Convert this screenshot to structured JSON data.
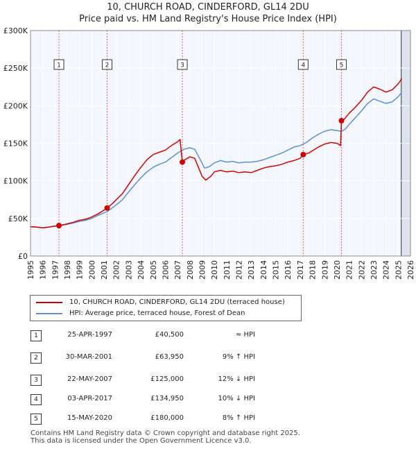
{
  "header": {
    "line1": "10, CHURCH ROAD, CINDERFORD, GL14 2DU",
    "line2": "Price paid vs. HM Land Registry's House Price Index (HPI)"
  },
  "chart_data": {
    "type": "line",
    "title": "10, CHURCH ROAD, CINDERFORD, GL14 2DU",
    "subtitle": "Price paid vs. HM Land Registry's House Price Index (HPI)",
    "xlabel": "",
    "ylabel": "",
    "xlim": [
      1995,
      2026
    ],
    "ylim": [
      0,
      300000
    ],
    "x_ticks": [
      1995,
      1996,
      1997,
      1998,
      1999,
      2000,
      2001,
      2002,
      2003,
      2004,
      2005,
      2006,
      2007,
      2008,
      2009,
      2010,
      2011,
      2012,
      2013,
      2014,
      2015,
      2016,
      2017,
      2018,
      2019,
      2020,
      2021,
      2022,
      2023,
      2024,
      2025,
      2026
    ],
    "y_ticks": [
      {
        "value": 0,
        "label": "£0"
      },
      {
        "value": 50000,
        "label": "£50K"
      },
      {
        "value": 100000,
        "label": "£100K"
      },
      {
        "value": 150000,
        "label": "£150K"
      },
      {
        "value": 200000,
        "label": "£200K"
      },
      {
        "value": 250000,
        "label": "£250K"
      },
      {
        "value": 300000,
        "label": "£300K"
      }
    ],
    "grid": true,
    "future_shade_from": 2025.25,
    "series": [
      {
        "name": "10, CHURCH ROAD, CINDERFORD, GL14 2DU (terraced house)",
        "color": "#cc0000",
        "points": [
          [
            1995.0,
            39000
          ],
          [
            1995.5,
            38500
          ],
          [
            1996.0,
            37500
          ],
          [
            1996.5,
            38500
          ],
          [
            1997.0,
            40000
          ],
          [
            1997.32,
            40500
          ],
          [
            1997.8,
            42000
          ],
          [
            1998.5,
            45000
          ],
          [
            1999.0,
            47500
          ],
          [
            1999.5,
            49000
          ],
          [
            2000.0,
            52000
          ],
          [
            2000.5,
            56000
          ],
          [
            2001.0,
            61000
          ],
          [
            2001.25,
            63950
          ],
          [
            2001.7,
            70000
          ],
          [
            2002.0,
            75000
          ],
          [
            2002.5,
            83000
          ],
          [
            2003.0,
            95000
          ],
          [
            2003.5,
            107000
          ],
          [
            2004.0,
            118000
          ],
          [
            2004.5,
            128000
          ],
          [
            2005.0,
            135000
          ],
          [
            2005.5,
            138000
          ],
          [
            2006.0,
            141000
          ],
          [
            2006.5,
            147000
          ],
          [
            2007.0,
            152000
          ],
          [
            2007.2,
            155000
          ],
          [
            2007.39,
            125000
          ],
          [
            2007.6,
            128000
          ],
          [
            2008.0,
            132000
          ],
          [
            2008.4,
            130000
          ],
          [
            2008.7,
            118000
          ],
          [
            2009.0,
            106000
          ],
          [
            2009.3,
            101000
          ],
          [
            2009.7,
            106000
          ],
          [
            2010.0,
            112000
          ],
          [
            2010.5,
            114000
          ],
          [
            2011.0,
            112000
          ],
          [
            2011.5,
            113000
          ],
          [
            2012.0,
            111000
          ],
          [
            2012.5,
            112000
          ],
          [
            2013.0,
            111000
          ],
          [
            2013.5,
            114000
          ],
          [
            2014.0,
            117000
          ],
          [
            2014.5,
            119000
          ],
          [
            2015.0,
            120000
          ],
          [
            2015.5,
            122000
          ],
          [
            2016.0,
            125000
          ],
          [
            2016.5,
            127000
          ],
          [
            2017.0,
            130000
          ],
          [
            2017.25,
            134950
          ],
          [
            2017.7,
            137000
          ],
          [
            2018.0,
            140000
          ],
          [
            2018.5,
            145000
          ],
          [
            2019.0,
            149000
          ],
          [
            2019.5,
            151000
          ],
          [
            2020.0,
            150000
          ],
          [
            2020.3,
            147000
          ],
          [
            2020.37,
            180000
          ],
          [
            2020.6,
            182000
          ],
          [
            2021.0,
            190000
          ],
          [
            2021.5,
            198000
          ],
          [
            2022.0,
            207000
          ],
          [
            2022.5,
            218000
          ],
          [
            2023.0,
            225000
          ],
          [
            2023.5,
            222000
          ],
          [
            2024.0,
            218000
          ],
          [
            2024.5,
            221000
          ],
          [
            2025.0,
            229000
          ],
          [
            2025.3,
            236000
          ]
        ]
      },
      {
        "name": "HPI: Average price, terraced house, Forest of Dean",
        "color": "#5b8fcf",
        "points": [
          [
            1995.0,
            39000
          ],
          [
            1995.5,
            38500
          ],
          [
            1996.0,
            37500
          ],
          [
            1996.5,
            38500
          ],
          [
            1997.0,
            40000
          ],
          [
            1997.32,
            40500
          ],
          [
            1997.8,
            41500
          ],
          [
            1998.5,
            44000
          ],
          [
            1999.0,
            46000
          ],
          [
            1999.5,
            47500
          ],
          [
            2000.0,
            50000
          ],
          [
            2000.5,
            54000
          ],
          [
            2001.0,
            57500
          ],
          [
            2001.25,
            59000
          ],
          [
            2002.0,
            68000
          ],
          [
            2002.5,
            75000
          ],
          [
            2003.0,
            85000
          ],
          [
            2003.5,
            95000
          ],
          [
            2004.0,
            104000
          ],
          [
            2004.5,
            112000
          ],
          [
            2005.0,
            118000
          ],
          [
            2005.5,
            122000
          ],
          [
            2006.0,
            125000
          ],
          [
            2006.5,
            131000
          ],
          [
            2007.0,
            137000
          ],
          [
            2007.5,
            142000
          ],
          [
            2008.0,
            144000
          ],
          [
            2008.4,
            142000
          ],
          [
            2008.8,
            130000
          ],
          [
            2009.2,
            117000
          ],
          [
            2009.6,
            119000
          ],
          [
            2010.0,
            124000
          ],
          [
            2010.5,
            127000
          ],
          [
            2011.0,
            125000
          ],
          [
            2011.5,
            126000
          ],
          [
            2012.0,
            124000
          ],
          [
            2012.5,
            125000
          ],
          [
            2013.0,
            125000
          ],
          [
            2013.5,
            126000
          ],
          [
            2014.0,
            128000
          ],
          [
            2014.5,
            131000
          ],
          [
            2015.0,
            134000
          ],
          [
            2015.5,
            137000
          ],
          [
            2016.0,
            141000
          ],
          [
            2016.5,
            145000
          ],
          [
            2017.0,
            147000
          ],
          [
            2017.5,
            151000
          ],
          [
            2018.0,
            157000
          ],
          [
            2018.5,
            162000
          ],
          [
            2019.0,
            166000
          ],
          [
            2019.5,
            168000
          ],
          [
            2020.0,
            167000
          ],
          [
            2020.37,
            166000
          ],
          [
            2020.7,
            169000
          ],
          [
            2021.0,
            175000
          ],
          [
            2021.5,
            184000
          ],
          [
            2022.0,
            193000
          ],
          [
            2022.5,
            203000
          ],
          [
            2023.0,
            209000
          ],
          [
            2023.5,
            206000
          ],
          [
            2024.0,
            203000
          ],
          [
            2024.5,
            205000
          ],
          [
            2025.0,
            212000
          ],
          [
            2025.3,
            218000
          ]
        ]
      }
    ],
    "sale_markers": [
      {
        "label": "1",
        "x": 1997.32,
        "price": 40500
      },
      {
        "label": "2",
        "x": 2001.25,
        "price": 63950
      },
      {
        "label": "3",
        "x": 2007.39,
        "price": 125000
      },
      {
        "label": "4",
        "x": 2017.25,
        "price": 134950
      },
      {
        "label": "5",
        "x": 2020.37,
        "price": 180000
      }
    ]
  },
  "legend": {
    "property_label": "10, CHURCH ROAD, CINDERFORD, GL14 2DU (terraced house)",
    "hpi_label": "HPI: Average price, terraced house, Forest of Dean"
  },
  "sales": [
    {
      "num": "1",
      "date": "25-APR-1997",
      "price": "£40,500",
      "hpi": "≈ HPI"
    },
    {
      "num": "2",
      "date": "30-MAR-2001",
      "price": "£63,950",
      "hpi": "9% ↑ HPI"
    },
    {
      "num": "3",
      "date": "22-MAY-2007",
      "price": "£125,000",
      "hpi": "12% ↓ HPI"
    },
    {
      "num": "4",
      "date": "03-APR-2017",
      "price": "£134,950",
      "hpi": "10% ↓ HPI"
    },
    {
      "num": "5",
      "date": "15-MAY-2020",
      "price": "£180,000",
      "hpi": "8% ↑ HPI"
    }
  ],
  "footer": {
    "line1": "Contains HM Land Registry data © Crown copyright and database right 2025.",
    "line2": "This data is licensed under the Open Government Licence v3.0."
  }
}
